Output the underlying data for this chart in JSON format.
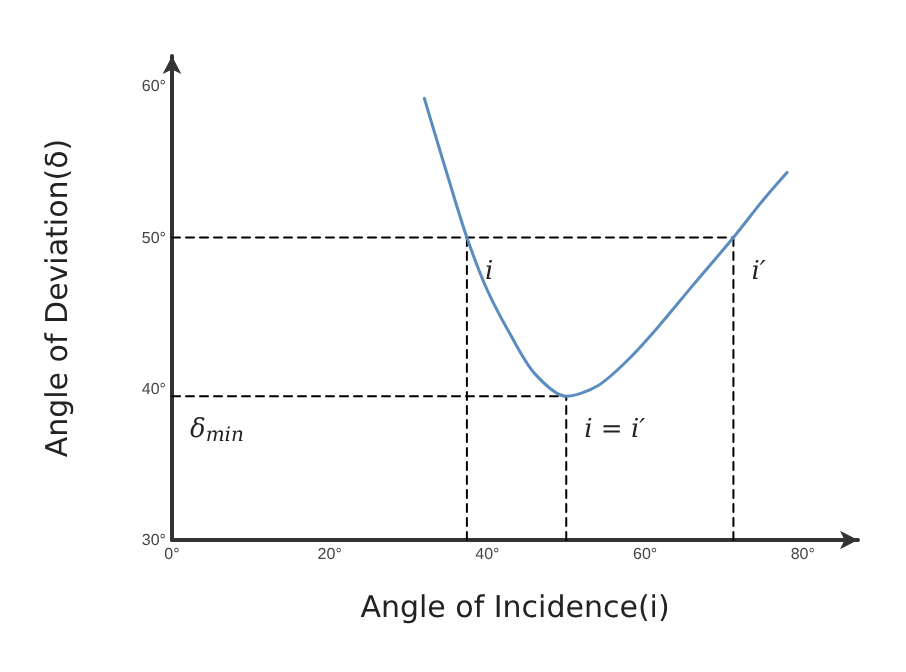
{
  "chart_data": {
    "type": "line",
    "xlabel": "Angle of Incidence(i)",
    "ylabel": "Angle of Deviation(δ)",
    "xlim": [
      0,
      87
    ],
    "ylim": [
      30,
      62
    ],
    "xticks": [
      {
        "value": 0,
        "label": "0°"
      },
      {
        "value": 20,
        "label": "20°"
      },
      {
        "value": 40,
        "label": "40°"
      },
      {
        "value": 60,
        "label": "60°"
      },
      {
        "value": 80,
        "label": "80°"
      }
    ],
    "yticks": [
      {
        "value": 30,
        "label": "30°"
      },
      {
        "value": 40,
        "label": "40°"
      },
      {
        "value": 50,
        "label": "50°"
      },
      {
        "value": 60,
        "label": "60°"
      }
    ],
    "grid": false,
    "marker": "none",
    "line_style": "solid",
    "series": [
      {
        "color": "#5b8cc0",
        "x": [
          32,
          35,
          37.4,
          40,
          43,
          46,
          50,
          54,
          58,
          62,
          66,
          71.2,
          75,
          78
        ],
        "values": [
          59.2,
          54,
          50,
          46.5,
          43.5,
          41,
          39.5,
          40.2,
          42,
          44.3,
          46.8,
          50,
          52.5,
          54.3
        ]
      },
      {
        "type": "line",
        "line_style": "dashed",
        "color": "#000000",
        "x": [
          0,
          71.2
        ],
        "values": [
          50,
          50
        ]
      },
      {
        "type": "line",
        "line_style": "dashed",
        "color": "#000000",
        "x": [
          0,
          50
        ],
        "values": [
          39.5,
          39.5
        ]
      },
      {
        "type": "line",
        "line_style": "dashed",
        "color": "#000000",
        "x": [
          37.4,
          37.4
        ],
        "values": [
          30,
          50
        ]
      },
      {
        "type": "line",
        "line_style": "dashed",
        "color": "#000000",
        "x": [
          50,
          50
        ],
        "values": [
          30,
          39.5
        ]
      },
      {
        "type": "line",
        "line_style": "dashed",
        "color": "#000000",
        "x": [
          71.2,
          71.2
        ],
        "values": [
          30,
          50
        ]
      }
    ],
    "annotations": [
      {
        "text": "i",
        "x": 37.4,
        "y": 50
      },
      {
        "text": "i′",
        "x": 71.2,
        "y": 50
      },
      {
        "text": "i = i′",
        "x": 50,
        "y": 39.5
      },
      {
        "text": "δ$_{min}$",
        "x": 0,
        "y": 39.5
      }
    ]
  }
}
